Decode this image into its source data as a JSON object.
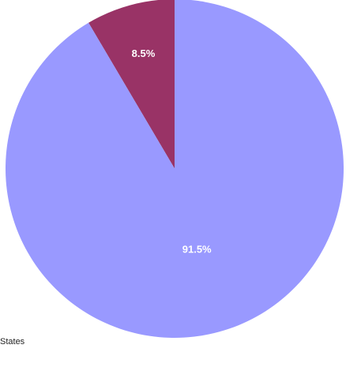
{
  "chart_data": {
    "type": "pie",
    "series": [
      {
        "slices": [
          {
            "label": "",
            "value": 8.5,
            "display": "8.5%",
            "color": "#993366"
          },
          {
            "label": "",
            "value": 91.5,
            "display": "91.5%",
            "color": "#9999ff"
          }
        ]
      }
    ],
    "start_angle": "12 o'clock",
    "direction": "counter-clockwise",
    "legend": {
      "placement": "bottom-left",
      "visible_text": "States"
    }
  }
}
